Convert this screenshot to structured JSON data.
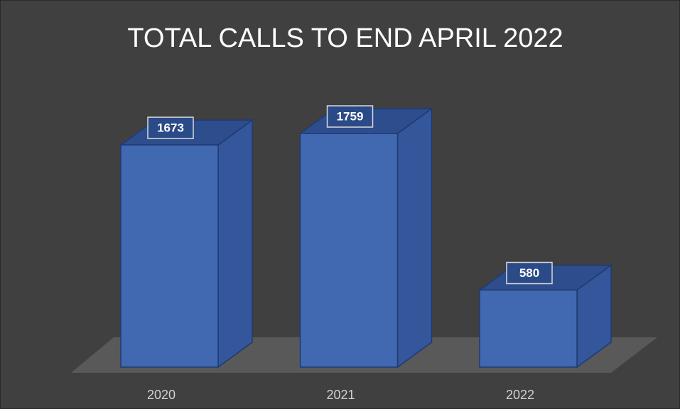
{
  "chart_data": {
    "type": "bar3d",
    "title": "TOTAL CALLS TO END APRIL 2022",
    "categories": [
      "2020",
      "2021",
      "2022"
    ],
    "values": [
      1673,
      1759,
      580
    ],
    "color": "#4169b1"
  }
}
